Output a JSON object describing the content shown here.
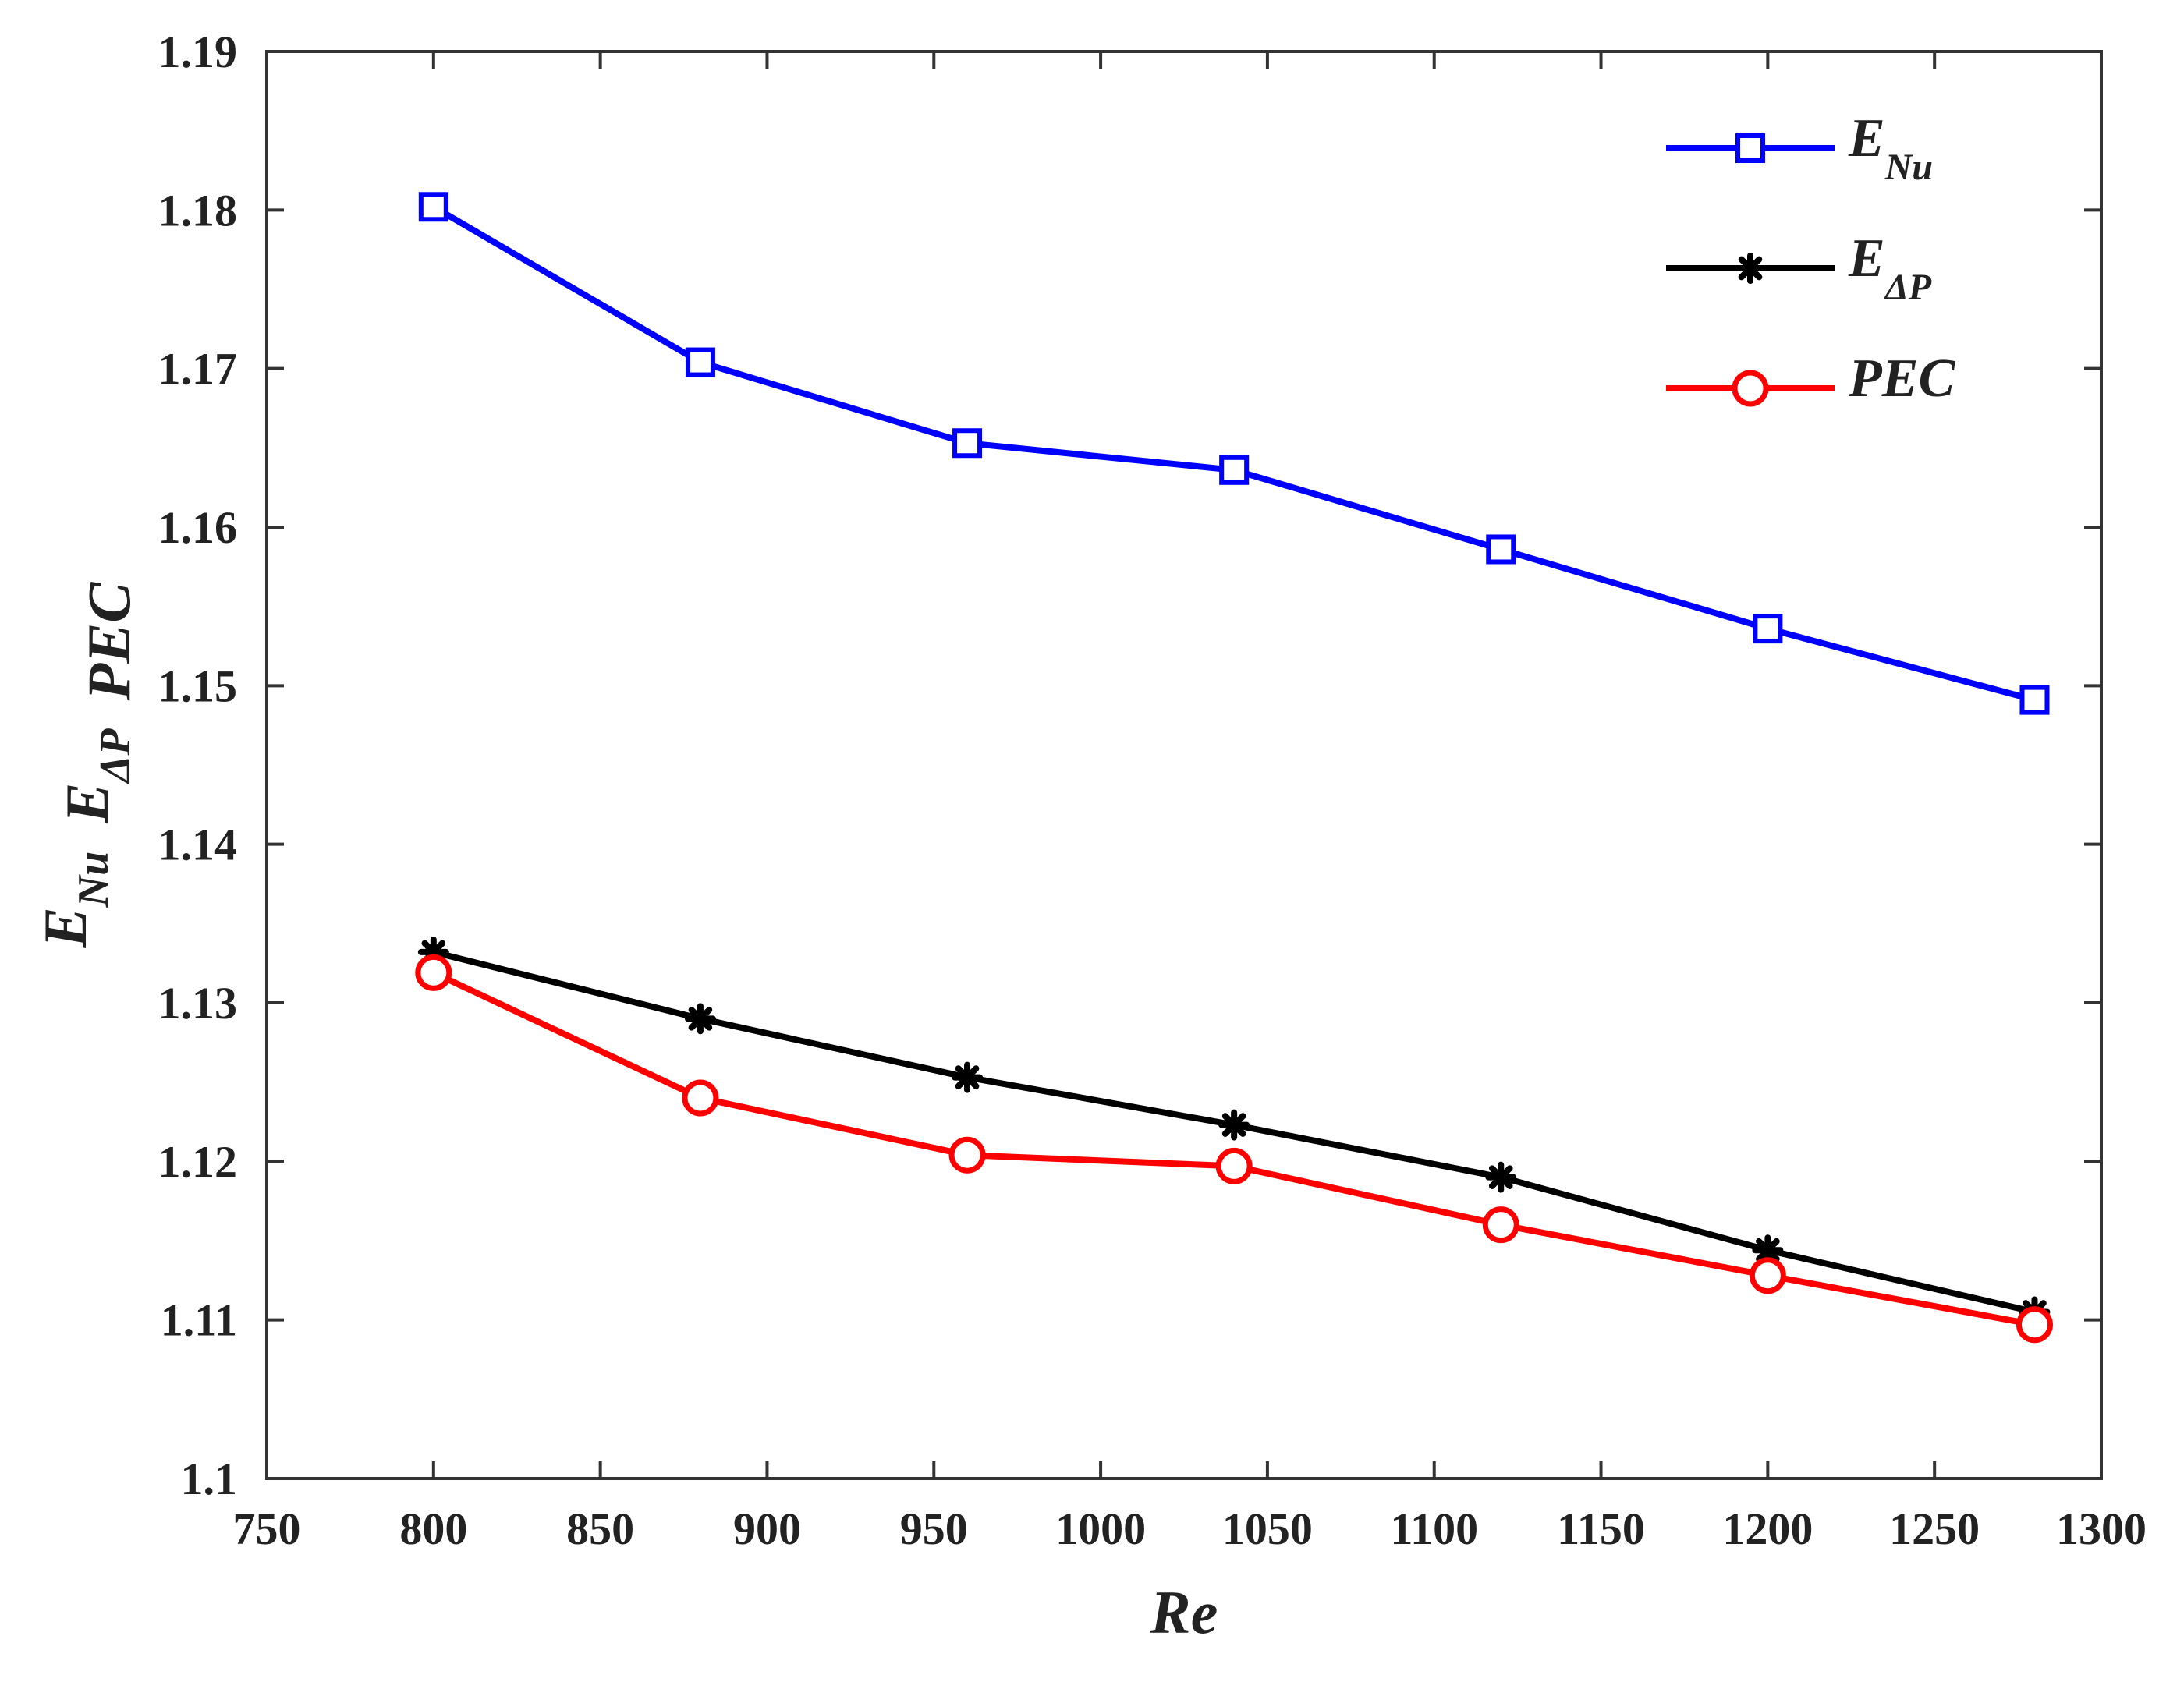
{
  "chart_data": {
    "type": "line",
    "title": "",
    "xlabel": "Re",
    "ylabel": {
      "parts": [
        {
          "main": "E",
          "sub": "Nu"
        },
        {
          "main": "E",
          "sub": "ΔP"
        },
        {
          "main": "PEC",
          "sub": ""
        }
      ]
    },
    "xlim": [
      750,
      1300
    ],
    "ylim": [
      1.1,
      1.19
    ],
    "xticks": [
      750,
      800,
      850,
      900,
      950,
      1000,
      1050,
      1100,
      1150,
      1200,
      1250,
      1300
    ],
    "xtick_labels": [
      "750",
      "800",
      "850",
      "900",
      "950",
      "1000",
      "1050",
      "1100",
      "1150",
      "1200",
      "1250",
      "1300"
    ],
    "yticks": [
      1.1,
      1.11,
      1.12,
      1.13,
      1.14,
      1.15,
      1.16,
      1.17,
      1.18,
      1.19
    ],
    "ytick_labels": [
      "1.1",
      "1.11",
      "1.12",
      "1.13",
      "1.14",
      "1.15",
      "1.16",
      "1.17",
      "1.18",
      "1.19"
    ],
    "grid": false,
    "legend_position": "top-right",
    "x": [
      800,
      880,
      960,
      1040,
      1120,
      1200,
      1280
    ],
    "series": [
      {
        "name": "E_Nu",
        "label_main": "E",
        "label_sub": "Nu",
        "color": "#0000ff",
        "marker": "square",
        "values": [
          1.1802,
          1.1704,
          1.1653,
          1.1636,
          1.1586,
          1.1536,
          1.1491
        ]
      },
      {
        "name": "E_ΔP",
        "label_main": "E",
        "label_sub": "ΔP",
        "color": "#000000",
        "marker": "asterisk",
        "values": [
          1.1332,
          1.129,
          1.1253,
          1.1223,
          1.119,
          1.1144,
          1.1105
        ]
      },
      {
        "name": "PEC",
        "label_main": "PEC",
        "label_sub": "",
        "color": "#ff0000",
        "marker": "circle",
        "values": [
          1.1319,
          1.124,
          1.1204,
          1.1197,
          1.116,
          1.1128,
          1.1097
        ]
      }
    ]
  }
}
